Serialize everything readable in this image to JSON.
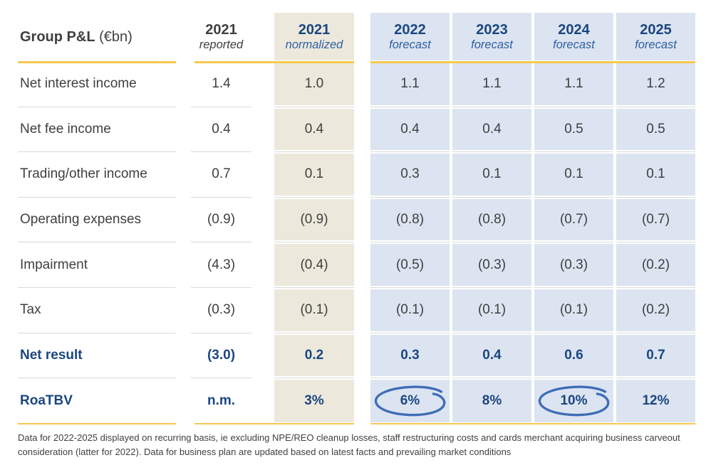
{
  "slide": {
    "title": {
      "name": "Group P&L",
      "unit": " (€bn)"
    },
    "footnote": "Data for 2022-2025 displayed on recurring basis, ie excluding NPE/REO cleanup losses, staff restructuring costs and cards merchant acquiring business carveout consideration (latter for 2022). Data for business plan are updated based on latest facts and prevailing market conditions"
  },
  "table": {
    "columns": [
      {
        "year": "2021",
        "sub": "reported",
        "style": "reported"
      },
      {
        "year": "2021",
        "sub": "normalized",
        "style": "normalized"
      },
      {
        "year": "2022",
        "sub": "forecast",
        "style": "forecast"
      },
      {
        "year": "2023",
        "sub": "forecast",
        "style": "forecast"
      },
      {
        "year": "2024",
        "sub": "forecast",
        "style": "forecast"
      },
      {
        "year": "2025",
        "sub": "forecast",
        "style": "forecast"
      }
    ],
    "rows": [
      {
        "label": "Net interest income",
        "bold": false,
        "values": [
          "1.4",
          "1.0",
          "1.1",
          "1.1",
          "1.1",
          "1.2"
        ],
        "circled": []
      },
      {
        "label": "Net fee income",
        "bold": false,
        "values": [
          "0.4",
          "0.4",
          "0.4",
          "0.4",
          "0.5",
          "0.5"
        ],
        "circled": []
      },
      {
        "label": "Trading/other income",
        "bold": false,
        "values": [
          "0.7",
          "0.1",
          "0.3",
          "0.1",
          "0.1",
          "0.1"
        ],
        "circled": []
      },
      {
        "label": "Operating expenses",
        "bold": false,
        "values": [
          "(0.9)",
          "(0.9)",
          "(0.8)",
          "(0.8)",
          "(0.7)",
          "(0.7)"
        ],
        "circled": []
      },
      {
        "label": "Impairment",
        "bold": false,
        "values": [
          "(4.3)",
          "(0.4)",
          "(0.5)",
          "(0.3)",
          "(0.3)",
          "(0.2)"
        ],
        "circled": []
      },
      {
        "label": "Tax",
        "bold": false,
        "values": [
          "(0.3)",
          "(0.1)",
          "(0.1)",
          "(0.1)",
          "(0.1)",
          "(0.2)"
        ],
        "circled": []
      },
      {
        "label": "Net result",
        "bold": true,
        "values": [
          "(3.0)",
          "0.2",
          "0.3",
          "0.4",
          "0.6",
          "0.7"
        ],
        "circled": []
      },
      {
        "label": "RoaTBV",
        "bold": true,
        "values": [
          "n.m.",
          "3%",
          "6%",
          "8%",
          "10%",
          "12%"
        ],
        "circled": [
          2,
          4
        ]
      }
    ]
  },
  "annotations": {
    "circle_meaning": "hand-drawn ellipse highlight on 2022 and 2024 RoaTBV"
  },
  "colors": {
    "navy": "#1B4680",
    "sub_blue": "#2E5FA3",
    "text_gray": "#3F3F3F",
    "gold": "#F7C84C",
    "beige_bg": "#ECE9DC",
    "blue_bg": "#DCE4F1",
    "separator": "#D9D9D9",
    "circle_blue": "#3E6DB5"
  }
}
